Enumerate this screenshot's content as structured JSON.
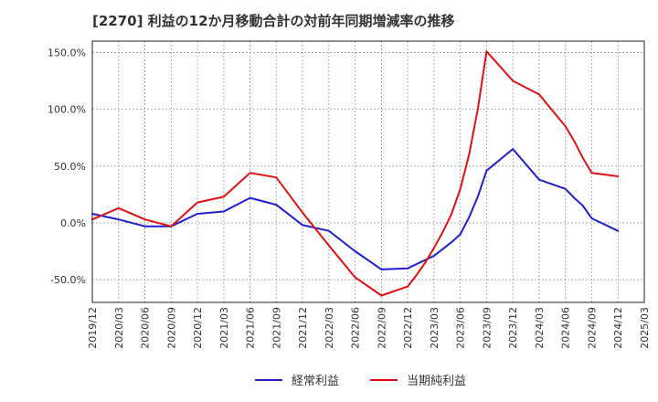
{
  "chart_data": {
    "type": "line",
    "title": "[2270]  利益の12か月移動合計の対前年同期増減率の推移",
    "xlabel": "",
    "ylabel": "",
    "ylim": [
      -70,
      160
    ],
    "yticks": [
      150,
      100,
      50,
      0,
      -50
    ],
    "ytick_labels": [
      "150.0%",
      "100.0%",
      "50.0%",
      "0.0%",
      "-50.0%"
    ],
    "xlim": [
      "2019/12",
      "2025/03"
    ],
    "xtick_labels": [
      "2019/12",
      "2020/03",
      "2020/06",
      "2020/09",
      "2020/12",
      "2021/03",
      "2021/06",
      "2021/09",
      "2021/12",
      "2022/03",
      "2022/06",
      "2022/09",
      "2022/12",
      "2023/03",
      "2023/06",
      "2023/09",
      "2023/12",
      "2024/03",
      "2024/06",
      "2024/09",
      "2024/12",
      "2025/03"
    ],
    "grid": true,
    "legend_position": "bottom",
    "colors": {
      "経常利益": "#1f1fd0",
      "当期純利益": "#e01010"
    },
    "series": [
      {
        "name": "経常利益",
        "x": [
          "2019/12",
          "2020/03",
          "2020/06",
          "2020/09",
          "2020/12",
          "2021/03",
          "2021/06",
          "2021/09",
          "2021/12",
          "2022/03",
          "2022/06",
          "2022/09",
          "2022/12",
          "2023/03",
          "2023/04",
          "2023/05",
          "2023/06",
          "2023/07",
          "2023/08",
          "2023/09",
          "2023/12",
          "2024/03",
          "2024/06",
          "2024/07",
          "2024/08",
          "2024/09",
          "2024/12"
        ],
        "values": [
          8,
          3,
          -3,
          -3,
          8,
          10,
          22,
          16,
          -2,
          -7,
          -25,
          -41,
          -40,
          -29,
          -23,
          -17,
          -10,
          5,
          23,
          46,
          65,
          38,
          30,
          22,
          15,
          4,
          -7
        ]
      },
      {
        "name": "当期純利益",
        "x": [
          "2019/12",
          "2020/03",
          "2020/06",
          "2020/09",
          "2020/12",
          "2021/03",
          "2021/06",
          "2021/09",
          "2021/12",
          "2022/03",
          "2022/06",
          "2022/09",
          "2022/12",
          "2023/01",
          "2023/02",
          "2023/03",
          "2023/04",
          "2023/05",
          "2023/06",
          "2023/07",
          "2023/08",
          "2023/09",
          "2023/12",
          "2024/03",
          "2024/06",
          "2024/07",
          "2024/08",
          "2024/09",
          "2024/12"
        ],
        "values": [
          3,
          13,
          3,
          -3,
          18,
          23,
          44,
          40,
          9,
          -20,
          -48,
          -64,
          -56,
          -46,
          -35,
          -22,
          -8,
          8,
          30,
          60,
          100,
          151,
          125,
          113,
          85,
          72,
          57,
          44,
          41
        ]
      }
    ]
  }
}
